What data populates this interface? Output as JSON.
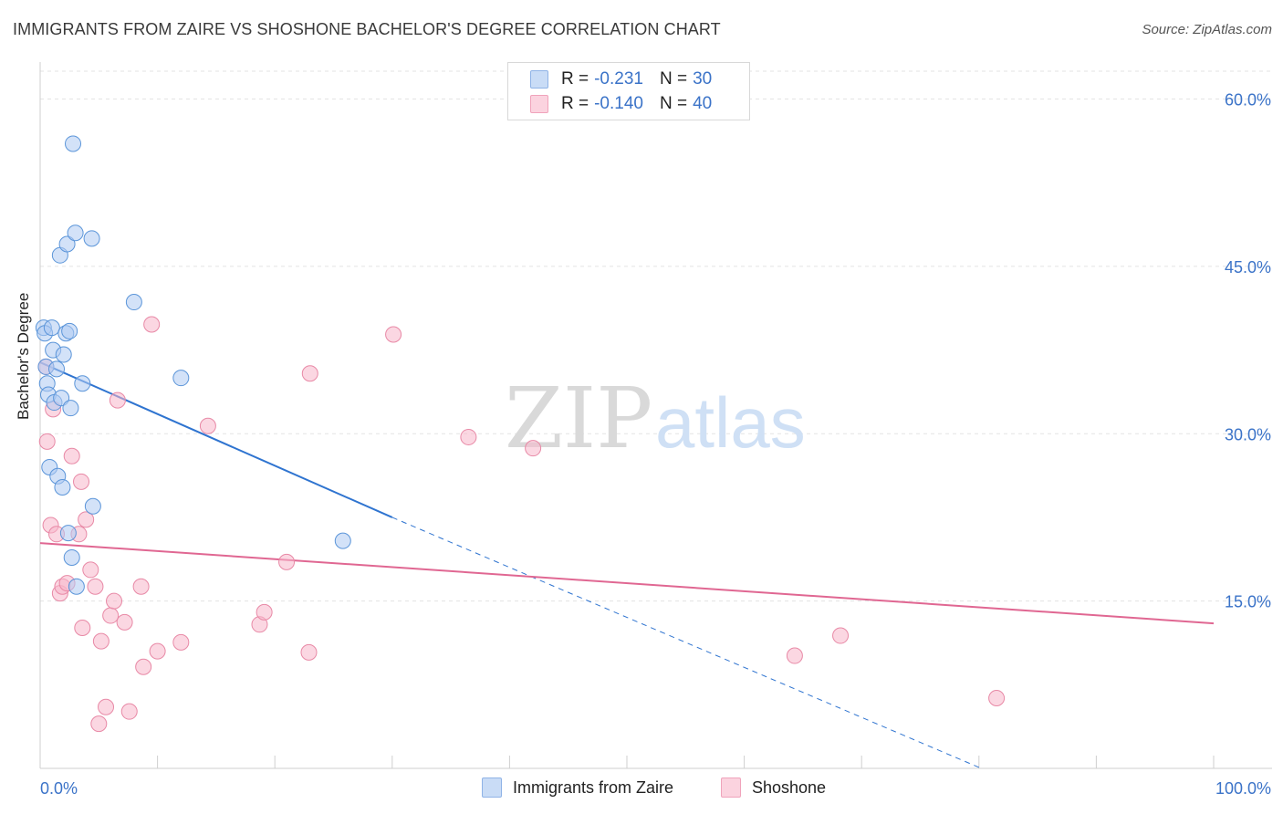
{
  "header": {
    "title": "IMMIGRANTS FROM ZAIRE VS SHOSHONE BACHELOR'S DEGREE CORRELATION CHART",
    "source": "Source: ZipAtlas.com"
  },
  "watermark": {
    "zip": "ZIP",
    "atlas": "atlas"
  },
  "legend": {
    "rows": [
      {
        "r_label": "R =",
        "r_value": "-0.231",
        "n_label": "N =",
        "n_value": "30",
        "color": "#aecbf2"
      },
      {
        "r_label": "R =",
        "r_value": "-0.140",
        "n_label": "N =",
        "n_value": "40",
        "color": "#f7b7cb"
      }
    ]
  },
  "bottom_legend": [
    {
      "label": "Immigrants from Zaire",
      "color": "#aecbf2"
    },
    {
      "label": "Shoshone",
      "color": "#f7b7cb"
    }
  ],
  "chart_data": {
    "type": "scatter",
    "title": "IMMIGRANTS FROM ZAIRE VS SHOSHONE BACHELOR'S DEGREE CORRELATION CHART",
    "xlabel": "",
    "ylabel": "Bachelor's Degree",
    "xlim": [
      0,
      100
    ],
    "ylim": [
      0,
      62.5
    ],
    "x_tick_labels": [
      "0.0%",
      "100.0%"
    ],
    "y_ticks": [
      15,
      30,
      45,
      60
    ],
    "y_tick_labels": [
      "15.0%",
      "30.0%",
      "45.0%",
      "60.0%"
    ],
    "grid": true,
    "series": [
      {
        "name": "Immigrants from Zaire",
        "color": "#5b95d9",
        "fill": "#aecbf2",
        "points": [
          [
            0.3,
            39.5
          ],
          [
            0.4,
            39.0
          ],
          [
            0.5,
            36.0
          ],
          [
            0.6,
            34.5
          ],
          [
            0.7,
            33.5
          ],
          [
            0.8,
            27.0
          ],
          [
            1.0,
            39.5
          ],
          [
            1.1,
            37.5
          ],
          [
            1.2,
            32.8
          ],
          [
            1.4,
            35.8
          ],
          [
            1.5,
            26.2
          ],
          [
            1.7,
            46.0
          ],
          [
            1.8,
            33.2
          ],
          [
            1.9,
            25.2
          ],
          [
            2.0,
            37.1
          ],
          [
            2.2,
            39.0
          ],
          [
            2.3,
            47.0
          ],
          [
            2.4,
            21.1
          ],
          [
            2.5,
            39.2
          ],
          [
            2.6,
            32.3
          ],
          [
            2.7,
            18.9
          ],
          [
            2.8,
            56.0
          ],
          [
            3.0,
            48.0
          ],
          [
            3.1,
            16.3
          ],
          [
            3.6,
            34.5
          ],
          [
            4.4,
            47.5
          ],
          [
            4.5,
            23.5
          ],
          [
            8.0,
            41.8
          ],
          [
            12.0,
            35.0
          ],
          [
            25.8,
            20.4
          ]
        ]
      },
      {
        "name": "Shoshone",
        "color": "#e889a6",
        "fill": "#f7b7cb",
        "points": [
          [
            0.5,
            36.0
          ],
          [
            0.6,
            29.3
          ],
          [
            0.9,
            21.8
          ],
          [
            1.1,
            32.2
          ],
          [
            1.4,
            21.0
          ],
          [
            1.7,
            15.7
          ],
          [
            1.9,
            16.3
          ],
          [
            2.3,
            16.6
          ],
          [
            2.7,
            28.0
          ],
          [
            3.3,
            21.0
          ],
          [
            3.5,
            25.7
          ],
          [
            3.6,
            12.6
          ],
          [
            3.9,
            22.3
          ],
          [
            4.3,
            17.8
          ],
          [
            4.7,
            16.3
          ],
          [
            5.2,
            11.4
          ],
          [
            5.6,
            5.5
          ],
          [
            5.0,
            4.0
          ],
          [
            6.0,
            13.7
          ],
          [
            6.3,
            15.0
          ],
          [
            6.6,
            33.0
          ],
          [
            7.2,
            13.1
          ],
          [
            7.6,
            5.1
          ],
          [
            8.6,
            16.3
          ],
          [
            8.8,
            9.1
          ],
          [
            10.0,
            10.5
          ],
          [
            12.0,
            11.3
          ],
          [
            14.3,
            30.7
          ],
          [
            18.7,
            12.9
          ],
          [
            19.1,
            14.0
          ],
          [
            21.0,
            18.5
          ],
          [
            22.9,
            10.4
          ],
          [
            23.0,
            35.4
          ],
          [
            30.1,
            38.9
          ],
          [
            36.5,
            29.7
          ],
          [
            42.0,
            28.7
          ],
          [
            64.3,
            10.1
          ],
          [
            68.2,
            11.9
          ],
          [
            81.5,
            6.3
          ],
          [
            9.5,
            39.8
          ]
        ]
      }
    ],
    "trendlines": [
      {
        "series": "Immigrants from Zaire",
        "x": [
          0,
          30
        ],
        "y": [
          36.4,
          22.5
        ],
        "dashed_extension_to_x": 80.2,
        "dashed_extension_y": 0,
        "color": "#2f74d0"
      },
      {
        "series": "Shoshone",
        "x": [
          0,
          100
        ],
        "y": [
          20.2,
          13.0
        ],
        "color": "#e06792"
      }
    ]
  }
}
